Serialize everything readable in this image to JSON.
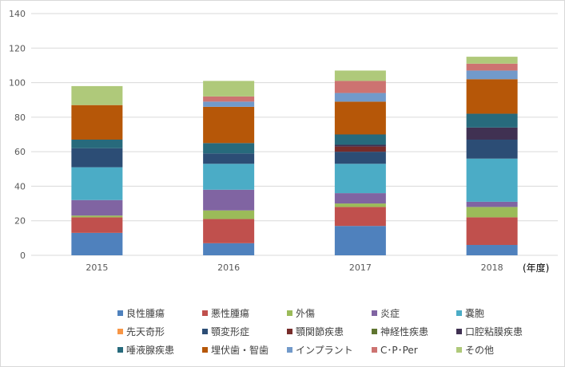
{
  "chart_data": {
    "type": "bar",
    "stacked": true,
    "categories": [
      "2015",
      "2016",
      "2017",
      "2018"
    ],
    "xlabel": "(年度)",
    "ylim": [
      0,
      140
    ],
    "yticks": [
      0,
      20,
      40,
      60,
      80,
      100,
      120,
      140
    ],
    "grid": true,
    "legend_position": "bottom",
    "series": [
      {
        "name": "良性腫瘍",
        "color": "#4f81bd",
        "values": [
          13,
          7,
          17,
          6
        ]
      },
      {
        "name": "悪性腫瘍",
        "color": "#c0504d",
        "values": [
          9,
          14,
          11,
          16
        ]
      },
      {
        "name": "外傷",
        "color": "#9bbb59",
        "values": [
          1,
          5,
          2,
          6
        ]
      },
      {
        "name": "炎症",
        "color": "#8064a2",
        "values": [
          9,
          12,
          6,
          3
        ]
      },
      {
        "name": "嚢胞",
        "color": "#4bacc6",
        "values": [
          19,
          15,
          17,
          25
        ]
      },
      {
        "name": "先天奇形",
        "color": "#f79646",
        "values": [
          0,
          0,
          0,
          0
        ]
      },
      {
        "name": "顎変形症",
        "color": "#2c4d75",
        "values": [
          11,
          6,
          7,
          11
        ]
      },
      {
        "name": "顎関節疾患",
        "color": "#772c2a",
        "values": [
          0,
          0,
          3,
          0
        ]
      },
      {
        "name": "神経性疾患",
        "color": "#5f7530",
        "values": [
          0,
          0,
          0,
          0
        ]
      },
      {
        "name": "口腔粘膜疾患",
        "color": "#403152",
        "values": [
          0,
          0,
          1,
          7
        ]
      },
      {
        "name": "唾液腺疾患",
        "color": "#276a7c",
        "values": [
          5,
          6,
          6,
          8
        ]
      },
      {
        "name": "埋伏歯・智歯",
        "color": "#b65708",
        "values": [
          20,
          21,
          19,
          20
        ]
      },
      {
        "name": "インプラント",
        "color": "#729aca",
        "values": [
          0,
          3,
          5,
          5
        ]
      },
      {
        "name": "C･P･Per",
        "color": "#cd7371",
        "values": [
          0,
          3,
          7,
          4
        ]
      },
      {
        "name": "その他",
        "color": "#afc97a",
        "values": [
          11,
          9,
          6,
          4
        ]
      }
    ]
  }
}
